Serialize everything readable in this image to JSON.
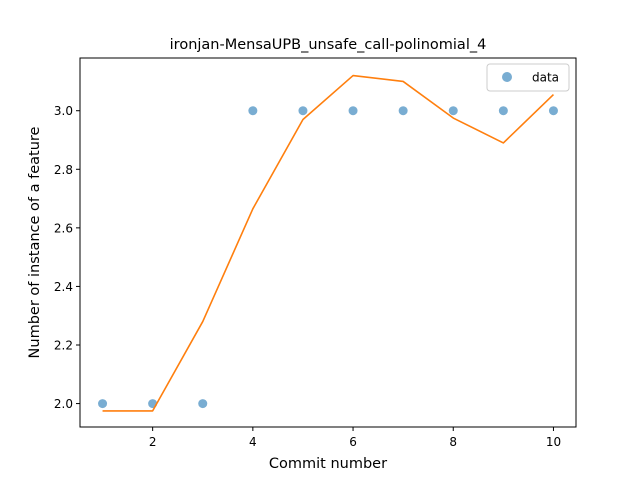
{
  "chart_data": {
    "type": "scatter",
    "title": "ironjan-MensaUPB_unsafe_call-polinomial_4",
    "xlabel": "Commit number",
    "ylabel": "Number of instance of a feature",
    "xlim": [
      0.55,
      10.45
    ],
    "ylim": [
      1.92,
      3.18
    ],
    "xticks": [
      2,
      4,
      6,
      8,
      10
    ],
    "xtick_labels": [
      "2",
      "4",
      "6",
      "8",
      "10"
    ],
    "yticks": [
      2.0,
      2.2,
      2.4,
      2.6,
      2.8,
      3.0
    ],
    "ytick_labels": [
      "2.0",
      "2.2",
      "2.4",
      "2.6",
      "2.8",
      "3.0"
    ],
    "grid": false,
    "legend_position": "top-right",
    "series": [
      {
        "name": "data",
        "kind": "points",
        "color": "#1f77b4",
        "x": [
          1,
          2,
          3,
          4,
          5,
          6,
          7,
          8,
          9,
          10
        ],
        "y": [
          2,
          2,
          2,
          3,
          3,
          3,
          3,
          3,
          3,
          3
        ]
      },
      {
        "kind": "line",
        "color": "#ff7f0e",
        "x": [
          1,
          2,
          3,
          4,
          5,
          6,
          7,
          8,
          9,
          10
        ],
        "y": [
          1.975,
          1.975,
          2.28,
          2.665,
          2.97,
          3.12,
          3.1,
          2.975,
          2.89,
          3.055
        ]
      }
    ]
  }
}
